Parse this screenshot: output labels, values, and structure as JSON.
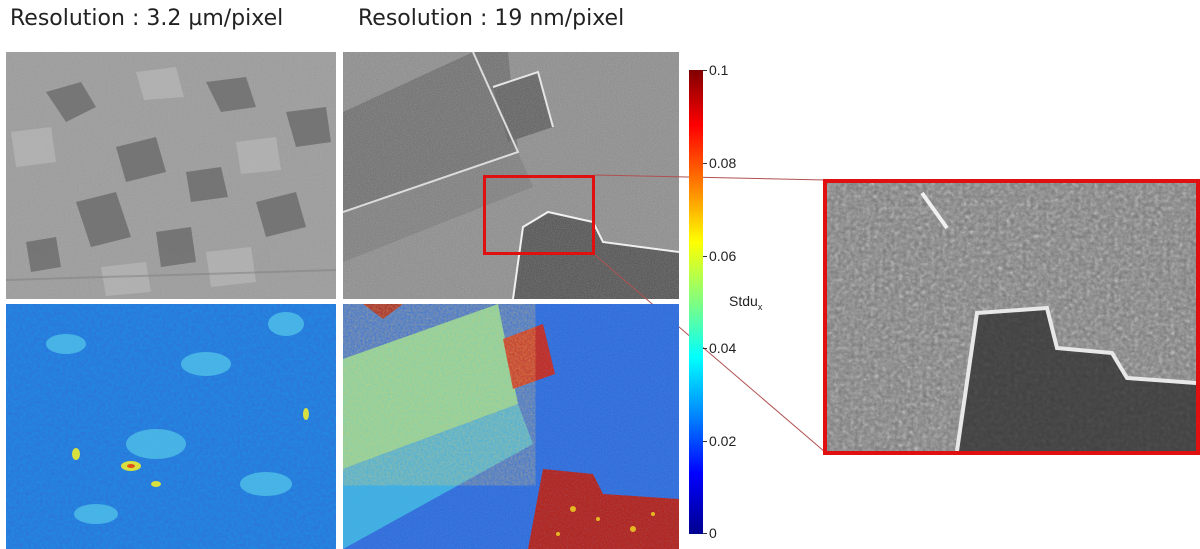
{
  "headings": {
    "left": "Resolution : 3.2 µm/pixel",
    "right": "Resolution : 19 nm/pixel"
  },
  "colorbar": {
    "label_main": "Stdu",
    "label_sub": "x",
    "ticks": [
      "0.1",
      "0.08",
      "0.06",
      "0.04",
      "0.02",
      "0"
    ],
    "range": [
      0,
      0.1
    ],
    "colormap": "jet"
  },
  "colors": {
    "highlight": "#e01010",
    "connector": "#b05050"
  }
}
